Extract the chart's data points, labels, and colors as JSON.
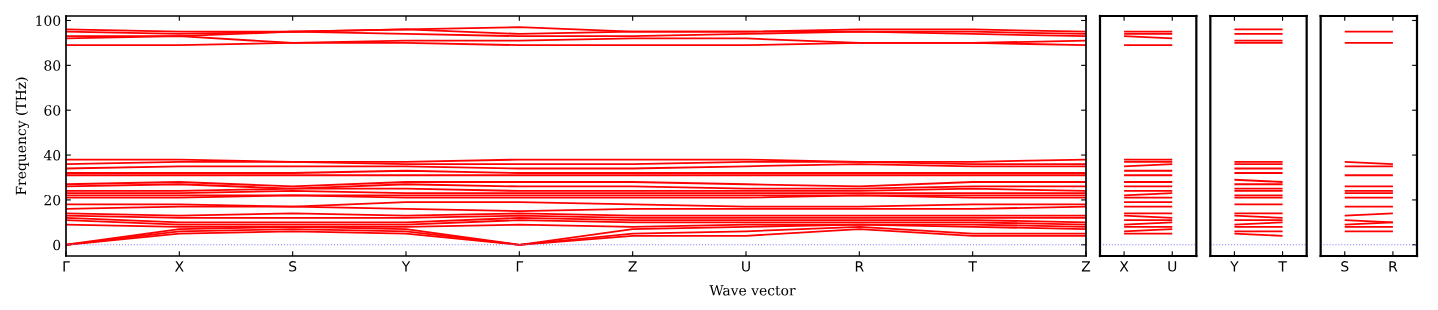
{
  "chart_data": [
    {
      "type": "line",
      "ylabel": "Frequency (THz)",
      "xlabel": "Wave vector",
      "line_style": "solid",
      "marker": "none",
      "grid": false,
      "categories": [
        "Γ",
        "X",
        "S",
        "Y",
        "Γ",
        "Z",
        "U",
        "R",
        "T",
        "Z"
      ],
      "ylim": [
        -5,
        102
      ],
      "yticks": [
        0,
        20,
        40,
        60,
        80,
        100
      ],
      "ref_lines": [
        {
          "axis": "y",
          "value": 0,
          "color": "#8080ff",
          "line_style": "dotted"
        }
      ],
      "series": [
        {
          "color": "#ff0000",
          "values": [
            0,
            5,
            6,
            5,
            0,
            4,
            4,
            7,
            4,
            4
          ]
        },
        {
          "color": "#ff0000",
          "values": [
            0,
            6,
            7,
            6,
            0,
            5,
            6,
            8,
            5,
            5
          ]
        },
        {
          "color": "#ff0000",
          "values": [
            0,
            7,
            8,
            7,
            0,
            7,
            8,
            9,
            8,
            7
          ]
        },
        {
          "color": "#ff0000",
          "values": [
            9,
            8,
            8,
            8,
            9,
            8,
            9,
            9,
            9,
            8
          ]
        },
        {
          "color": "#ff0000",
          "values": [
            11,
            9,
            9,
            9,
            11,
            10,
            10,
            10,
            10,
            9
          ]
        },
        {
          "color": "#ff0000",
          "values": [
            12,
            10,
            10,
            10,
            12,
            11,
            11,
            11,
            11,
            10
          ]
        },
        {
          "color": "#ff0000",
          "values": [
            13,
            12,
            12,
            12,
            13,
            12,
            12,
            12,
            12,
            12
          ]
        },
        {
          "color": "#ff0000",
          "values": [
            14,
            13,
            14,
            13,
            14,
            13,
            13,
            13,
            13,
            13
          ]
        },
        {
          "color": "#ff0000",
          "values": [
            16,
            17,
            17,
            16,
            15,
            16,
            16,
            16,
            16,
            17
          ]
        },
        {
          "color": "#ff0000",
          "values": [
            18,
            18,
            17,
            19,
            19,
            18,
            17,
            17,
            18,
            18
          ]
        },
        {
          "color": "#ff0000",
          "values": [
            21,
            21,
            22,
            21,
            21,
            21,
            21,
            22,
            21,
            21
          ]
        },
        {
          "color": "#ff0000",
          "values": [
            22,
            22,
            22,
            22,
            22,
            22,
            22,
            22,
            22,
            22
          ]
        },
        {
          "color": "#ff0000",
          "values": [
            23,
            23,
            24,
            23,
            23,
            23,
            23,
            23,
            23,
            23
          ]
        },
        {
          "color": "#ff0000",
          "values": [
            24,
            24,
            25,
            25,
            24,
            24,
            24,
            24,
            25,
            24
          ]
        },
        {
          "color": "#ff0000",
          "values": [
            26,
            27,
            25,
            27,
            26,
            26,
            25,
            25,
            26,
            26
          ]
        },
        {
          "color": "#ff0000",
          "values": [
            27,
            28,
            26,
            28,
            28,
            28,
            27,
            26,
            28,
            28
          ]
        },
        {
          "color": "#ff0000",
          "values": [
            31,
            31,
            31,
            31,
            31,
            31,
            31,
            31,
            31,
            31
          ]
        },
        {
          "color": "#ff0000",
          "values": [
            32,
            32,
            32,
            33,
            32,
            32,
            32,
            32,
            32,
            32
          ]
        },
        {
          "color": "#ff0000",
          "values": [
            34,
            35,
            35,
            35,
            34,
            34,
            35,
            36,
            35,
            35
          ]
        },
        {
          "color": "#ff0000",
          "values": [
            36,
            37,
            37,
            36,
            36,
            36,
            37,
            37,
            36,
            36
          ]
        },
        {
          "color": "#ff0000",
          "values": [
            38,
            38,
            37,
            37,
            38,
            38,
            38,
            37,
            37,
            38
          ]
        },
        {
          "color": "#ff0000",
          "values": [
            89,
            89,
            90,
            90,
            89,
            89,
            89,
            90,
            90,
            89
          ]
        },
        {
          "color": "#ff0000",
          "values": [
            92,
            93,
            90,
            91,
            91,
            92,
            92,
            90,
            90,
            91
          ]
        },
        {
          "color": "#ff0000",
          "values": [
            93,
            93,
            95,
            94,
            93,
            93,
            94,
            95,
            94,
            93
          ]
        },
        {
          "color": "#ff0000",
          "values": [
            95,
            94,
            95,
            96,
            94,
            95,
            95,
            95,
            95,
            94
          ]
        },
        {
          "color": "#ff0000",
          "values": [
            96,
            95,
            95,
            96,
            97,
            95,
            95,
            96,
            96,
            95
          ]
        }
      ]
    },
    {
      "type": "line",
      "line_style": "solid",
      "marker": "none",
      "grid": false,
      "tick_labels": "x",
      "categories": [
        "X",
        "U"
      ],
      "ylim": [
        -5,
        102
      ],
      "yticks": [
        0,
        20,
        40,
        60,
        80,
        100
      ],
      "ref_lines": [
        {
          "axis": "y",
          "value": 0,
          "color": "#8080ff",
          "line_style": "dotted"
        }
      ],
      "series": [
        {
          "color": "#ff0000",
          "values": [
            5,
            5
          ]
        },
        {
          "color": "#ff0000",
          "values": [
            6,
            7
          ]
        },
        {
          "color": "#ff0000",
          "values": [
            8,
            8
          ]
        },
        {
          "color": "#ff0000",
          "values": [
            9,
            10
          ]
        },
        {
          "color": "#ff0000",
          "values": [
            11,
            11
          ]
        },
        {
          "color": "#ff0000",
          "values": [
            13,
            12
          ]
        },
        {
          "color": "#ff0000",
          "values": [
            14,
            14
          ]
        },
        {
          "color": "#ff0000",
          "values": [
            17,
            17
          ]
        },
        {
          "color": "#ff0000",
          "values": [
            19,
            19
          ]
        },
        {
          "color": "#ff0000",
          "values": [
            21,
            21
          ]
        },
        {
          "color": "#ff0000",
          "values": [
            22,
            23
          ]
        },
        {
          "color": "#ff0000",
          "values": [
            24,
            24
          ]
        },
        {
          "color": "#ff0000",
          "values": [
            26,
            26
          ]
        },
        {
          "color": "#ff0000",
          "values": [
            28,
            28
          ]
        },
        {
          "color": "#ff0000",
          "values": [
            31,
            31
          ]
        },
        {
          "color": "#ff0000",
          "values": [
            33,
            33
          ]
        },
        {
          "color": "#ff0000",
          "values": [
            35,
            36
          ]
        },
        {
          "color": "#ff0000",
          "values": [
            37,
            37
          ]
        },
        {
          "color": "#ff0000",
          "values": [
            38,
            38
          ]
        },
        {
          "color": "#ff0000",
          "values": [
            89,
            89
          ]
        },
        {
          "color": "#ff0000",
          "values": [
            93,
            92
          ]
        },
        {
          "color": "#ff0000",
          "values": [
            94,
            94
          ]
        },
        {
          "color": "#ff0000",
          "values": [
            95,
            95
          ]
        }
      ]
    },
    {
      "type": "line",
      "line_style": "solid",
      "marker": "none",
      "grid": false,
      "tick_labels": "x",
      "categories": [
        "Y",
        "T"
      ],
      "ylim": [
        -5,
        102
      ],
      "yticks": [
        0,
        20,
        40,
        60,
        80,
        100
      ],
      "ref_lines": [
        {
          "axis": "y",
          "value": 0,
          "color": "#8080ff",
          "line_style": "dotted"
        }
      ],
      "series": [
        {
          "color": "#ff0000",
          "values": [
            5,
            4
          ]
        },
        {
          "color": "#ff0000",
          "values": [
            6,
            6
          ]
        },
        {
          "color": "#ff0000",
          "values": [
            8,
            8
          ]
        },
        {
          "color": "#ff0000",
          "values": [
            9,
            10
          ]
        },
        {
          "color": "#ff0000",
          "values": [
            11,
            11
          ]
        },
        {
          "color": "#ff0000",
          "values": [
            13,
            12
          ]
        },
        {
          "color": "#ff0000",
          "values": [
            14,
            14
          ]
        },
        {
          "color": "#ff0000",
          "values": [
            18,
            18
          ]
        },
        {
          "color": "#ff0000",
          "values": [
            21,
            21
          ]
        },
        {
          "color": "#ff0000",
          "values": [
            22,
            22
          ]
        },
        {
          "color": "#ff0000",
          "values": [
            24,
            24
          ]
        },
        {
          "color": "#ff0000",
          "values": [
            25,
            25
          ]
        },
        {
          "color": "#ff0000",
          "values": [
            27,
            27
          ]
        },
        {
          "color": "#ff0000",
          "values": [
            29,
            28
          ]
        },
        {
          "color": "#ff0000",
          "values": [
            32,
            32
          ]
        },
        {
          "color": "#ff0000",
          "values": [
            34,
            34
          ]
        },
        {
          "color": "#ff0000",
          "values": [
            36,
            36
          ]
        },
        {
          "color": "#ff0000",
          "values": [
            37,
            37
          ]
        },
        {
          "color": "#ff0000",
          "values": [
            90,
            90
          ]
        },
        {
          "color": "#ff0000",
          "values": [
            91,
            91
          ]
        },
        {
          "color": "#ff0000",
          "values": [
            94,
            94
          ]
        },
        {
          "color": "#ff0000",
          "values": [
            96,
            96
          ]
        }
      ]
    },
    {
      "type": "line",
      "line_style": "solid",
      "marker": "none",
      "grid": false,
      "tick_labels": "x",
      "categories": [
        "S",
        "R"
      ],
      "ylim": [
        -5,
        102
      ],
      "yticks": [
        0,
        20,
        40,
        60,
        80,
        100
      ],
      "ref_lines": [
        {
          "axis": "y",
          "value": 0,
          "color": "#8080ff",
          "line_style": "dotted"
        }
      ],
      "series": [
        {
          "color": "#ff0000",
          "values": [
            6,
            6
          ]
        },
        {
          "color": "#ff0000",
          "values": [
            8,
            8
          ]
        },
        {
          "color": "#ff0000",
          "values": [
            9,
            10
          ]
        },
        {
          "color": "#ff0000",
          "values": [
            11,
            10
          ]
        },
        {
          "color": "#ff0000",
          "values": [
            13,
            14
          ]
        },
        {
          "color": "#ff0000",
          "values": [
            17,
            17
          ]
        },
        {
          "color": "#ff0000",
          "values": [
            21,
            21
          ]
        },
        {
          "color": "#ff0000",
          "values": [
            23,
            23
          ]
        },
        {
          "color": "#ff0000",
          "values": [
            24,
            24
          ]
        },
        {
          "color": "#ff0000",
          "values": [
            26,
            26
          ]
        },
        {
          "color": "#ff0000",
          "values": [
            31,
            31
          ]
        },
        {
          "color": "#ff0000",
          "values": [
            35,
            35
          ]
        },
        {
          "color": "#ff0000",
          "values": [
            37,
            36
          ]
        },
        {
          "color": "#ff0000",
          "values": [
            90,
            90
          ]
        },
        {
          "color": "#ff0000",
          "values": [
            95,
            95
          ]
        }
      ]
    }
  ]
}
